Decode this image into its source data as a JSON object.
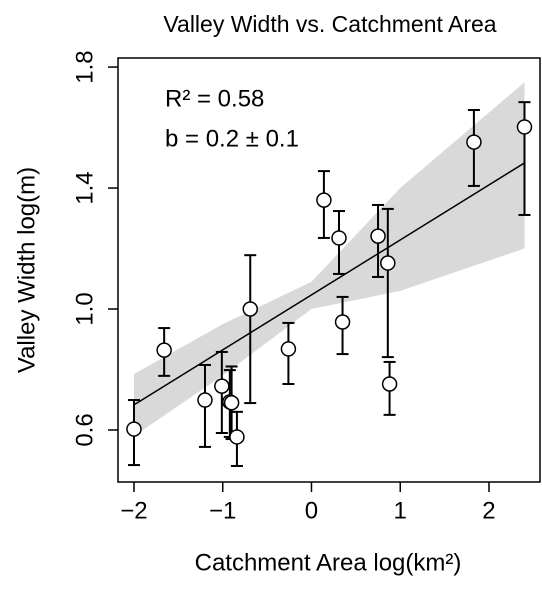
{
  "chart_data": {
    "type": "scatter",
    "title": "Valley Width vs. Catchment Area",
    "x_label": "Catchment Area log(km²)",
    "y_label": "Valley Width log(m)",
    "annotations": [
      "R² = 0.58",
      "b = 0.2 ± 0.1"
    ],
    "x": [
      -2.0,
      -1.66,
      -1.2,
      -1.01,
      -0.92,
      -0.9,
      -0.84,
      -0.69,
      -0.26,
      0.14,
      0.31,
      0.35,
      0.75,
      0.86,
      0.88,
      1.83,
      2.4
    ],
    "series": [
      {
        "color": "#000000",
        "values": [
          0.603,
          0.864,
          0.699,
          0.745,
          0.693,
          0.69,
          0.577,
          1.0,
          0.868,
          1.36,
          1.235,
          0.957,
          1.241,
          1.152,
          0.752,
          1.552,
          1.602
        ],
        "y_upper": [
          0.699,
          0.937,
          0.815,
          0.858,
          0.798,
          0.81,
          0.66,
          1.178,
          0.954,
          1.456,
          1.324,
          1.04,
          1.344,
          1.331,
          0.825,
          1.658,
          1.684
        ],
        "y_lower": [
          0.484,
          0.779,
          0.544,
          0.59,
          0.577,
          0.57,
          0.481,
          0.689,
          0.752,
          1.235,
          1.116,
          0.851,
          1.106,
          0.841,
          0.65,
          1.407,
          1.311
        ]
      }
    ],
    "fit": {
      "x": [
        -2.0,
        2.4
      ],
      "y": [
        0.683,
        1.483
      ],
      "color": "#000000"
    },
    "band": {
      "x": [
        -2.0,
        -1.0,
        0.0,
        1.0,
        2.4
      ],
      "lower": [
        0.58,
        0.78,
        1.0,
        1.06,
        1.2
      ],
      "upper": [
        0.785,
        0.95,
        1.09,
        1.4,
        1.75
      ],
      "color": "#d9d9d9"
    },
    "xlim": [
      -2.18,
      2.586
    ],
    "ylim": [
      0.428,
      1.83
    ],
    "xticks": [
      {
        "value": -2,
        "label": "−2"
      },
      {
        "value": -1,
        "label": "−1"
      },
      0,
      1,
      2
    ],
    "yticks": [
      0.6,
      {
        "value": 1,
        "label": "1.0"
      },
      1.4,
      1.8
    ],
    "grid": false
  }
}
